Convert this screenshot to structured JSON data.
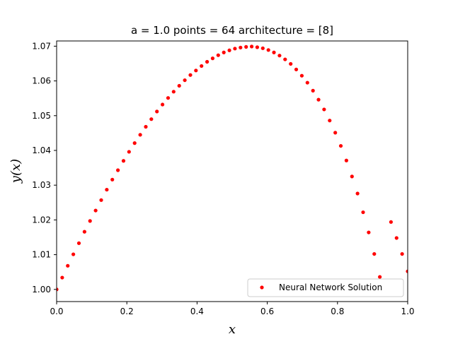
{
  "chart_data": {
    "type": "scatter",
    "title": "a = 1.0 points = 64 architecture = [8]",
    "xlabel": "x",
    "ylabel": "y(x)",
    "xlim": [
      0.0,
      1.0
    ],
    "ylim": [
      0.9965,
      1.0715
    ],
    "x_ticks": [
      "0.0",
      "0.2",
      "0.4",
      "0.6",
      "0.8",
      "1.0"
    ],
    "x_tick_values": [
      0.0,
      0.2,
      0.4,
      0.6,
      0.8,
      1.0
    ],
    "y_ticks": [
      "1.00",
      "1.01",
      "1.02",
      "1.03",
      "1.04",
      "1.05",
      "1.06",
      "1.07"
    ],
    "y_tick_values": [
      1.0,
      1.01,
      1.02,
      1.03,
      1.04,
      1.05,
      1.06,
      1.07
    ],
    "legend": {
      "placement": "lower-right",
      "entries": [
        "Neural Network Solution"
      ]
    },
    "grid": false,
    "series": [
      {
        "name": "Neural Network Solution",
        "color": "#ff0000",
        "marker": "circle",
        "x": [
          0.0,
          0.0159,
          0.0317,
          0.0476,
          0.0635,
          0.0794,
          0.0952,
          0.1111,
          0.127,
          0.1429,
          0.1587,
          0.1746,
          0.1905,
          0.2063,
          0.2222,
          0.2381,
          0.254,
          0.2698,
          0.2857,
          0.3016,
          0.3175,
          0.3333,
          0.3492,
          0.3651,
          0.381,
          0.3968,
          0.4127,
          0.4286,
          0.4444,
          0.4603,
          0.4762,
          0.4921,
          0.5079,
          0.5238,
          0.5397,
          0.5556,
          0.5714,
          0.5873,
          0.6032,
          0.619,
          0.6349,
          0.6508,
          0.6667,
          0.6825,
          0.6984,
          0.7143,
          0.7302,
          0.746,
          0.7619,
          0.7778,
          0.7937,
          0.8095,
          0.8254,
          0.8413,
          0.8571,
          0.873,
          0.8889,
          0.9048,
          0.9206,
          0.9365,
          0.9524,
          0.9683,
          0.9841,
          1.0
        ],
        "y": [
          1.0,
          1.0034,
          1.0068,
          1.0101,
          1.0133,
          1.0166,
          1.0197,
          1.0227,
          1.0257,
          1.0287,
          1.0316,
          1.0343,
          1.037,
          1.0396,
          1.0421,
          1.0445,
          1.0468,
          1.049,
          1.0512,
          1.0532,
          1.0551,
          1.0569,
          1.0586,
          1.0602,
          1.0617,
          1.063,
          1.0643,
          1.0655,
          1.0665,
          1.0674,
          1.0682,
          1.0688,
          1.0693,
          1.0696,
          1.0698,
          1.0699,
          1.0697,
          1.0694,
          1.0689,
          1.0682,
          1.0673,
          1.0662,
          1.0649,
          1.0633,
          1.0615,
          1.0595,
          1.0572,
          1.0546,
          1.0518,
          1.0486,
          1.0451,
          1.0413,
          1.0371,
          1.0325,
          1.0276,
          1.0222,
          1.0164,
          1.0102,
          1.0036,
          0.9997,
          1.0194,
          1.0148,
          1.0102,
          1.0052
        ]
      }
    ]
  }
}
